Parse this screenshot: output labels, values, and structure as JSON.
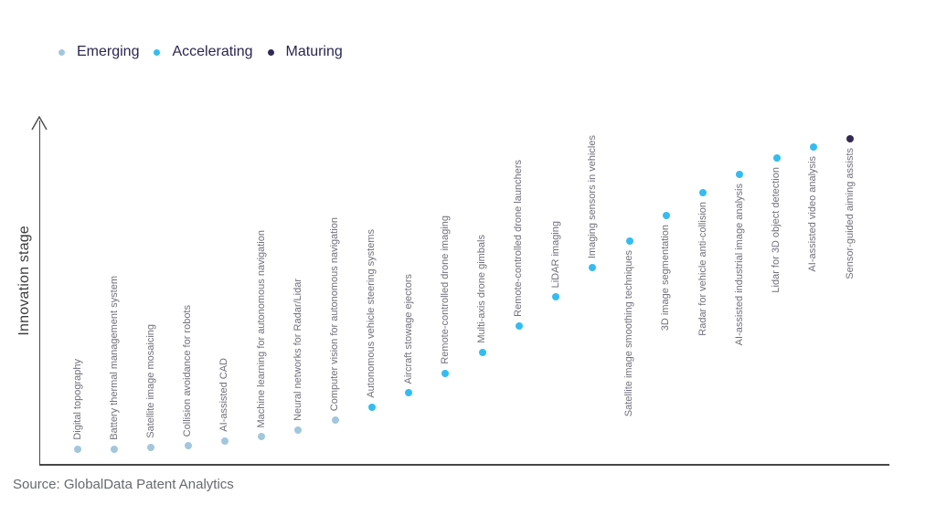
{
  "page": {
    "background": "#ffffff"
  },
  "legend": {
    "items": [
      {
        "label": "Emerging",
        "color": "#a2c7dd"
      },
      {
        "label": "Accelerating",
        "color": "#33bcf2"
      },
      {
        "label": "Maturing",
        "color": "#322a55"
      }
    ]
  },
  "source": {
    "text": "Source: GlobalData Patent Analytics"
  },
  "chart_data": {
    "type": "scatter",
    "title": "",
    "xlabel": "",
    "ylabel": "Innovation stage",
    "grid": false,
    "legend_position": "top-left",
    "x_axis": {
      "ticks": "none"
    },
    "y_axis": {
      "ticks": "none",
      "range": [
        0,
        1
      ],
      "arrow": true
    },
    "stages": [
      "Emerging",
      "Accelerating",
      "Maturing"
    ],
    "points": [
      {
        "label": "Digital topography",
        "stage": "Emerging",
        "stage_score": 0.051
      },
      {
        "label": "Battery thermal management system",
        "stage": "Emerging",
        "stage_score": 0.051
      },
      {
        "label": "Satellite image mosaicing",
        "stage": "Emerging",
        "stage_score": 0.057
      },
      {
        "label": "Collision avoidance for robots",
        "stage": "Emerging",
        "stage_score": 0.062
      },
      {
        "label": "AI-assisted CAD",
        "stage": "Emerging",
        "stage_score": 0.075
      },
      {
        "label": "Machine learning for autonomous navigation",
        "stage": "Emerging",
        "stage_score": 0.089
      },
      {
        "label": "Neural networks for Radar/Lidar",
        "stage": "Emerging",
        "stage_score": 0.108
      },
      {
        "label": "Computer vision for autonomous navigation",
        "stage": "Emerging",
        "stage_score": 0.137
      },
      {
        "label": "Autonomous vehicle steering systems",
        "stage": "Accelerating",
        "stage_score": 0.175
      },
      {
        "label": "Aircraft stowage ejectors",
        "stage": "Accelerating",
        "stage_score": 0.218
      },
      {
        "label": "Remote-controlled drone imaging",
        "stage": "Accelerating",
        "stage_score": 0.275
      },
      {
        "label": "Multi-axis drone gimbals",
        "stage": "Accelerating",
        "stage_score": 0.337
      },
      {
        "label": "Remote-controlled drone launchers",
        "stage": "Accelerating",
        "stage_score": 0.415
      },
      {
        "label": "LiDAR imaging",
        "stage": "Accelerating",
        "stage_score": 0.501
      },
      {
        "label": "Imaging sensors in vehicles",
        "stage": "Accelerating",
        "stage_score": 0.588
      },
      {
        "label": "Satellite image smoothing techniques",
        "stage": "Accelerating",
        "stage_score": 0.666
      },
      {
        "label": "3D image segmentation",
        "stage": "Accelerating",
        "stage_score": 0.741
      },
      {
        "label": "Radar for vehicle anti-collision",
        "stage": "Accelerating",
        "stage_score": 0.809
      },
      {
        "label": "AI-assisted industrial image analysis",
        "stage": "Accelerating",
        "stage_score": 0.863
      },
      {
        "label": "Lidar for 3D object detection",
        "stage": "Accelerating",
        "stage_score": 0.911
      },
      {
        "label": "AI-assisted video analysis",
        "stage": "Accelerating",
        "stage_score": 0.943
      },
      {
        "label": "Sensor-guided aiming assists",
        "stage": "Maturing",
        "stage_score": 0.968
      }
    ]
  }
}
